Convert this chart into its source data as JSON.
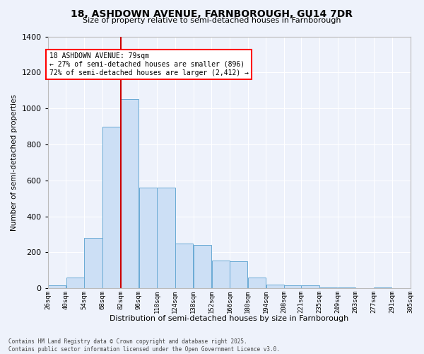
{
  "title_line1": "18, ASHDOWN AVENUE, FARNBOROUGH, GU14 7DR",
  "title_line2": "Size of property relative to semi-detached houses in Farnborough",
  "xlabel": "Distribution of semi-detached houses by size in Farnborough",
  "ylabel": "Number of semi-detached properties",
  "bar_color": "#ccdff5",
  "bar_edge_color": "#6aaad4",
  "background_color": "#eef2fb",
  "grid_color": "#ffffff",
  "annotation_title": "18 ASHDOWN AVENUE: 79sqm",
  "annotation_line1": "← 27% of semi-detached houses are smaller (896)",
  "annotation_line2": "72% of semi-detached houses are larger (2,412) →",
  "property_line_x": 82,
  "footnote1": "Contains HM Land Registry data © Crown copyright and database right 2025.",
  "footnote2": "Contains public sector information licensed under the Open Government Licence v3.0.",
  "bin_edges": [
    26,
    40,
    54,
    68,
    82,
    96,
    110,
    124,
    138,
    152,
    166,
    180,
    194,
    208,
    221,
    235,
    249,
    263,
    277,
    291,
    305
  ],
  "bin_labels": [
    "26sqm",
    "40sqm",
    "54sqm",
    "68sqm",
    "82sqm",
    "96sqm",
    "110sqm",
    "124sqm",
    "138sqm",
    "152sqm",
    "166sqm",
    "180sqm",
    "194sqm",
    "208sqm",
    "221sqm",
    "235sqm",
    "249sqm",
    "263sqm",
    "277sqm",
    "291sqm",
    "305sqm"
  ],
  "counts": [
    18,
    60,
    280,
    900,
    1050,
    560,
    560,
    250,
    240,
    155,
    150,
    60,
    20,
    18,
    18,
    5,
    5,
    0,
    4,
    0,
    0
  ],
  "ylim": [
    0,
    1400
  ],
  "yticks": [
    0,
    200,
    400,
    600,
    800,
    1000,
    1200,
    1400
  ]
}
